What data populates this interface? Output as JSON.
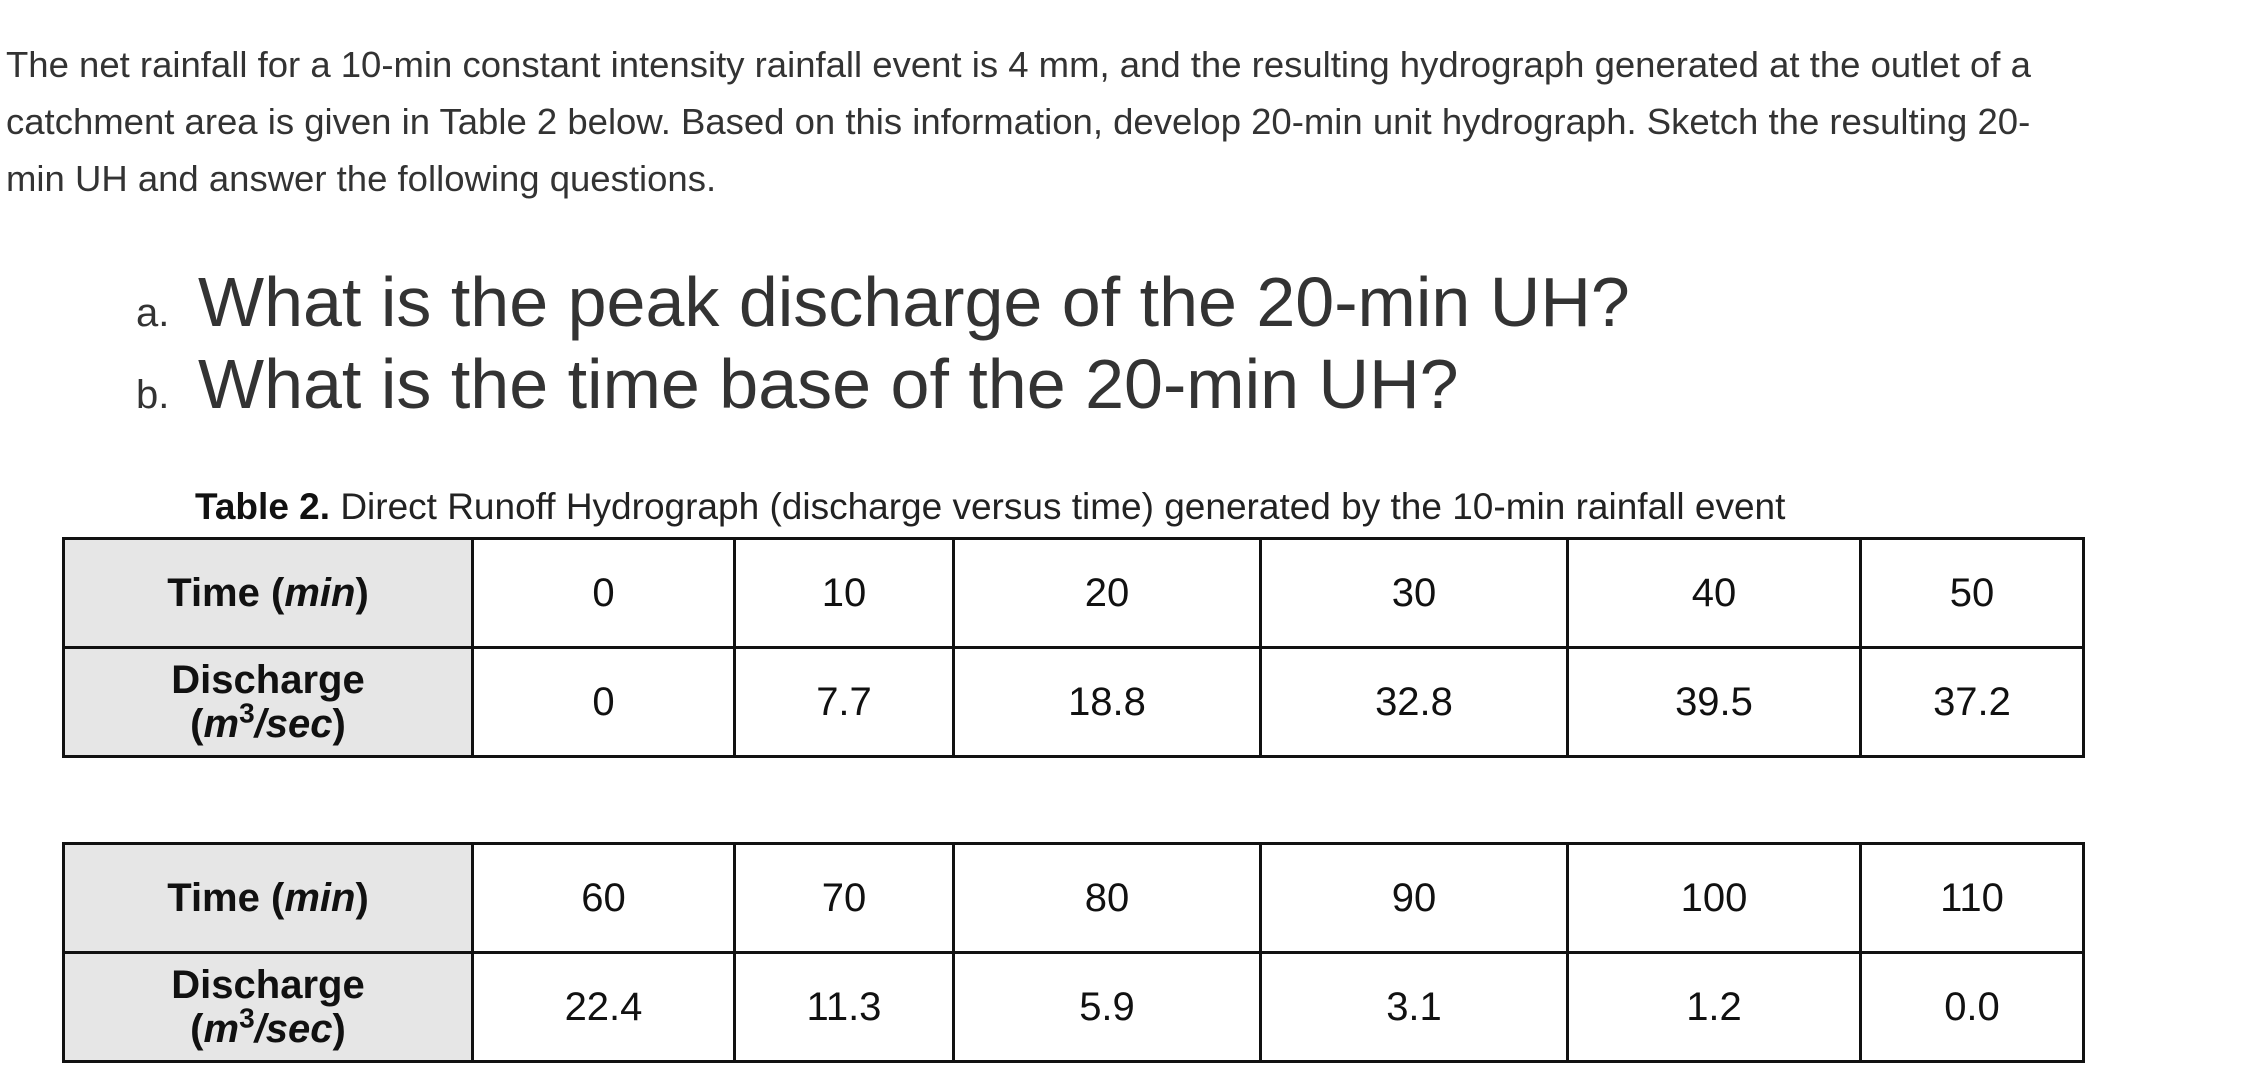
{
  "problem": {
    "line1": "The net rainfall for a 10-min constant intensity rainfall event is 4 mm, and the resulting hydrograph generated at the outlet of a",
    "line2": "catchment area is given in Table 2 below.  Based on this information, develop 20-min unit hydrograph.  Sketch the resulting 20-",
    "line3": "min UH and answer the following questions."
  },
  "questions": [
    {
      "letter": "a.",
      "text": "What is the peak discharge of the 20-min UH?"
    },
    {
      "letter": "b.",
      "text": "What is the time base of the 20-min UH?"
    }
  ],
  "caption": {
    "label": "Table 2.",
    "text": "Direct Runoff Hydrograph (discharge versus time) generated by the 10-min rainfall event"
  },
  "headers": {
    "time_pre": "Time (",
    "time_unit": "min",
    "time_post": ")",
    "discharge_word": "Discharge",
    "discharge_open": "(",
    "discharge_unit_m": "m",
    "discharge_exp": "3",
    "discharge_unit_rest": "/sec",
    "discharge_close": ")"
  },
  "tables": [
    {
      "time": [
        "0",
        "10",
        "20",
        "30",
        "40",
        "50"
      ],
      "discharge": [
        "0",
        "7.7",
        "18.8",
        "32.8",
        "39.5",
        "37.2"
      ]
    },
    {
      "time": [
        "60",
        "70",
        "80",
        "90",
        "100",
        "110"
      ],
      "discharge": [
        "22.4",
        "11.3",
        "5.9",
        "3.1",
        "1.2",
        "0.0"
      ]
    }
  ]
}
